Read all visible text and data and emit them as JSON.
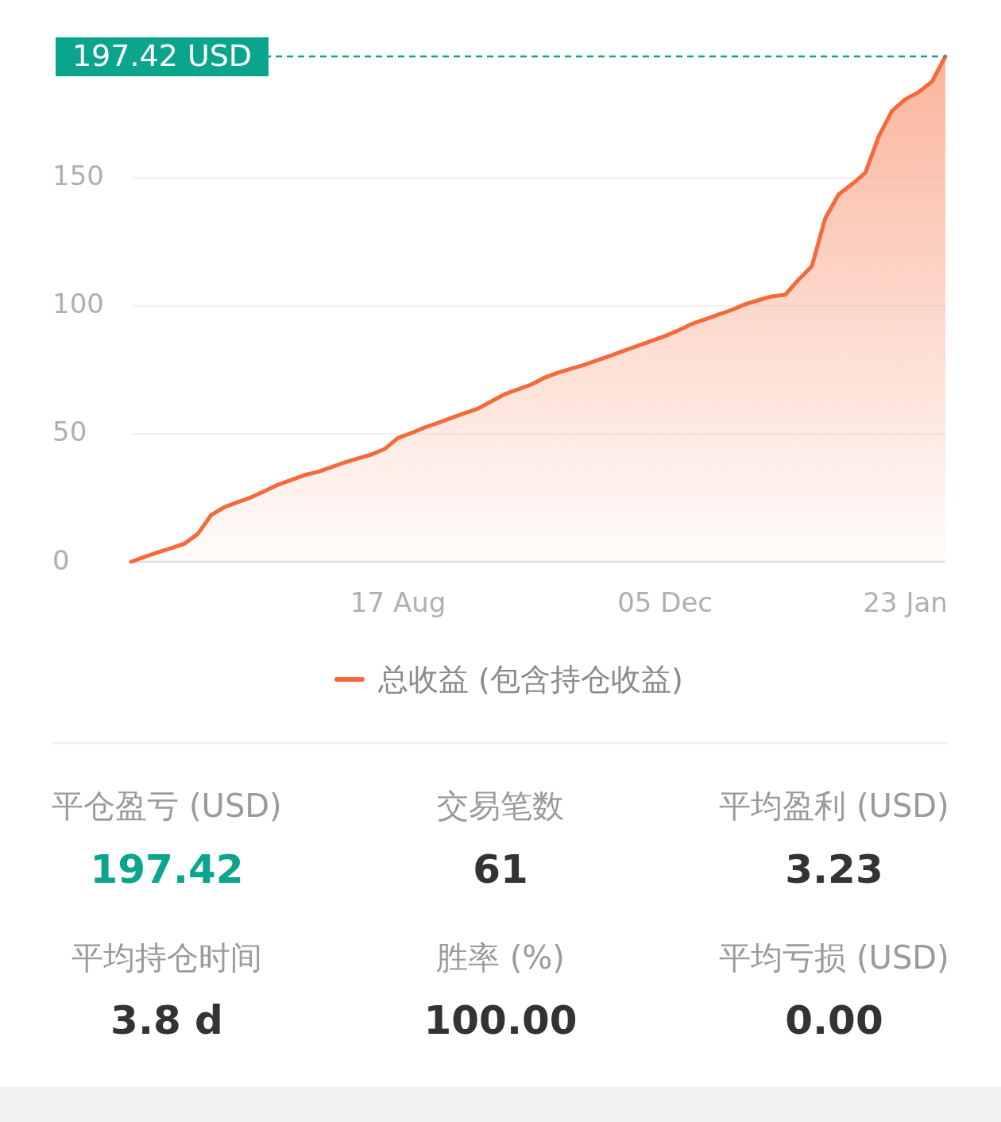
{
  "chart_data": [
    {
      "type": "area",
      "categories": [
        null,
        null,
        null,
        null,
        null,
        null,
        null,
        null,
        null,
        null,
        null,
        null,
        null,
        null,
        null,
        null,
        null,
        null,
        null,
        null,
        "17 Aug",
        null,
        null,
        null,
        null,
        null,
        null,
        null,
        null,
        null,
        null,
        null,
        null,
        null,
        null,
        null,
        null,
        null,
        null,
        null,
        "05 Dec",
        null,
        null,
        null,
        null,
        null,
        null,
        null,
        null,
        null,
        null,
        null,
        null,
        null,
        null,
        null,
        null,
        null,
        "23 Jan",
        null,
        null,
        null
      ],
      "series": [
        {
          "name": "总收益 (包含持仓收益)",
          "color": "#f56a3a",
          "values": [
            0,
            1.9,
            3.7,
            5.3,
            7.1,
            10.9,
            18.3,
            21.4,
            23.3,
            25.2,
            27.6,
            30.1,
            32,
            33.9,
            35.1,
            37,
            38.8,
            40.4,
            41.9,
            44.1,
            48.4,
            50.3,
            52.5,
            54.3,
            56.2,
            58.1,
            59.9,
            62.7,
            65.5,
            67.4,
            69.3,
            72,
            73.9,
            75.5,
            77,
            78.9,
            80.7,
            82.6,
            84.5,
            86.3,
            88.2,
            90.4,
            92.9,
            94.7,
            96.6,
            98.4,
            100.6,
            102.2,
            103.7,
            104.3,
            110.2,
            115.5,
            134.2,
            143.5,
            147.5,
            151.9,
            166.1,
            176.1,
            180.7,
            183.5,
            187.6,
            197.42
          ]
        }
      ],
      "ylim": [
        0,
        197.42
      ],
      "yticks": [
        0,
        50,
        100,
        150
      ],
      "grid": "y",
      "legend": "bottom",
      "ref_lines": [
        {
          "axis": "y",
          "value": 197.42,
          "label": "197.42 USD",
          "color": "#0aa58c",
          "line_style": "dashed"
        }
      ]
    },
    {
      "type": "other",
      "annotations": [
        "平仓盈亏 (USD)",
        "197.42",
        "交易笔数",
        "61",
        "平均盈利 (USD)",
        "3.23",
        "平均持仓时间",
        "3.8 d",
        "胜率 (%)",
        "100.00",
        "平均亏损 (USD)",
        "0.00"
      ]
    }
  ]
}
